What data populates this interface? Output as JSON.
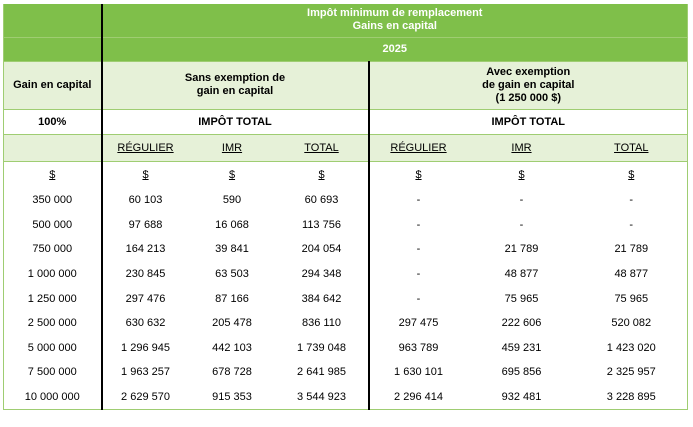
{
  "title": {
    "line1": "Impôt minimum de remplacement",
    "line2": "Gains en capital",
    "year": "2025"
  },
  "headers": {
    "gain_label": "Gain en capital",
    "sans_label": "Sans exemption de gain en capital",
    "avec_label_1": "Avec exemption",
    "avec_label_2": "de gain en capital",
    "avec_label_3": "(1 250 000 $)",
    "percent": "100%",
    "impot_total_sans": "IMPÔT TOTAL",
    "impot_total_avec": "IMPÔT TOTAL"
  },
  "columns": [
    "RÉGULIER",
    "IMR",
    "TOTAL",
    "RÉGULIER",
    "IMR",
    "TOTAL"
  ],
  "currency_symbol": "$",
  "rows": [
    [
      "350 000",
      "60 103",
      "590",
      "60 693",
      "-",
      "-",
      "-"
    ],
    [
      "500 000",
      "97 688",
      "16 068",
      "113 756",
      "-",
      "-",
      "-"
    ],
    [
      "750 000",
      "164 213",
      "39 841",
      "204 054",
      "-",
      "21 789",
      "21 789"
    ],
    [
      "1 000 000",
      "230 845",
      "63 503",
      "294 348",
      "-",
      "48 877",
      "48 877"
    ],
    [
      "1 250 000",
      "297 476",
      "87 166",
      "384 642",
      "-",
      "75 965",
      "75 965"
    ],
    [
      "2 500 000",
      "630 632",
      "205 478",
      "836 110",
      "297 475",
      "222 606",
      "520 082"
    ],
    [
      "5 000 000",
      "1 296 945",
      "442 103",
      "1 739 048",
      "963 789",
      "459 231",
      "1 423 020"
    ],
    [
      "7 500 000",
      "1 963 257",
      "678 728",
      "2 641 985",
      "1 630 101",
      "695 856",
      "2 325 957"
    ],
    [
      "10 000 000",
      "2 629 570",
      "915 353",
      "3 544 923",
      "2 296 414",
      "932 481",
      "3 228 895"
    ]
  ]
}
